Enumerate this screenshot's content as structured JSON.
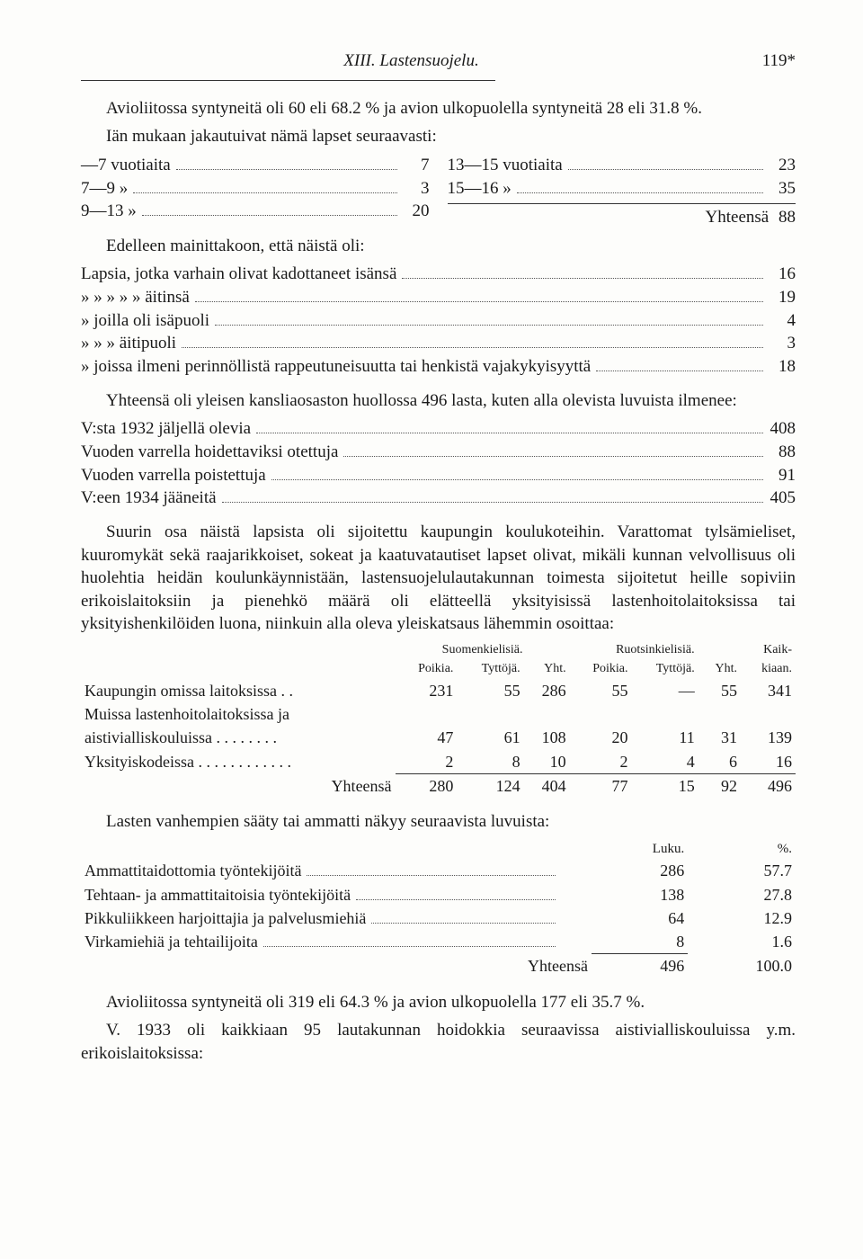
{
  "header": {
    "title": "XIII. Lastensuojelu.",
    "pageno": "119*"
  },
  "para1": "Avioliitossa syntyneitä oli 60 eli 68.2 % ja avion ulkopuolella syntyneitä 28 eli 31.8 %.",
  "para2_lead": "Iän mukaan jakautuivat nämä lapset seuraavasti:",
  "age_left": [
    {
      "lbl": "—7 vuotiaita",
      "val": "7"
    },
    {
      "lbl": "7—9      »",
      "val": "3"
    },
    {
      "lbl": "9—13    »",
      "val": "20"
    }
  ],
  "age_right": [
    {
      "lbl": "13—15 vuotiaita",
      "val": "23"
    },
    {
      "lbl": "15—16      »",
      "val": "35"
    }
  ],
  "age_total": {
    "lbl": "Yhteensä",
    "val": "88"
  },
  "para3": "Edelleen mainittakoon, että näistä oli:",
  "causes": [
    {
      "lbl": "Lapsia, jotka varhain olivat kadottaneet isänsä",
      "val": "16"
    },
    {
      "lbl": "   »        »        »         »          »      äitinsä",
      "val": "19"
    },
    {
      "lbl": "   »    joilla oli isäpuoli",
      "val": "4"
    },
    {
      "lbl": "   »       »    »  äitipuoli",
      "val": "3"
    },
    {
      "lbl": "   »    joissa ilmeni perinnöllistä rappeutuneisuutta tai henkistä vajakykyisyyttä",
      "val": "18"
    }
  ],
  "para4": "Yhteensä oli yleisen kansliaosaston huollossa 496 lasta, kuten alla olevista luvuista ilmenee:",
  "care_list": [
    {
      "lbl": "V:sta 1932 jäljellä olevia",
      "val": "408"
    },
    {
      "lbl": "Vuoden varrella hoidettaviksi otettuja",
      "val": "88"
    },
    {
      "lbl": "Vuoden varrella poistettuja",
      "val": "91"
    },
    {
      "lbl": "V:een 1934 jääneitä",
      "val": "405"
    }
  ],
  "para5": "Suurin osa näistä lapsista oli sijoitettu kaupungin koulukoteihin. Varattomat tylsämieliset, kuuromykät sekä raajarikkoiset, sokeat ja kaatuvatautiset lapset olivat, mikäli kunnan velvollisuus oli huolehtia heidän koulunkäynnistään, lastensuojelulautakunnan toimesta sijoitetut heille sopiviin erikoislaitoksiin ja pienehkö määrä oli elätteellä yksityisissä lastenhoitolaitoksissa tai yksityishenkilöiden luona, niinkuin alla oleva yleiskatsaus lähemmin osoittaa:",
  "tbl1": {
    "group_headers": [
      "",
      "Suomenkielisiä.",
      "Ruotsinkielisiä.",
      "Kaik-"
    ],
    "sub_headers": [
      "",
      "Poikia.",
      "Tyttöjä.",
      "Yht.",
      "Poikia.",
      "Tyttöjä.",
      "Yht.",
      "kiaan."
    ],
    "rows": [
      {
        "label": "Kaupungin omissa laitoksissa  . .",
        "v": [
          "231",
          "55",
          "286",
          "55",
          "—",
          "55",
          "341"
        ]
      },
      {
        "label": "Muissa lastenhoitolaitoksissa ja",
        "v": []
      },
      {
        "label": "  aistivialliskouluissa  . . . . . . . .",
        "v": [
          "47",
          "61",
          "108",
          "20",
          "11",
          "31",
          "139"
        ]
      },
      {
        "label": "Yksityiskodeissa  . . . . . . . . . . . .",
        "v": [
          "2",
          "8",
          "10",
          "2",
          "4",
          "6",
          "16"
        ]
      }
    ],
    "total": {
      "label": "Yhteensä",
      "v": [
        "280",
        "124",
        "404",
        "77",
        "15",
        "92",
        "496"
      ]
    }
  },
  "para6": "Lasten vanhempien sääty tai ammatti näkyy seuraavista luvuista:",
  "tbl2": {
    "headers": [
      "Luku.",
      "%."
    ],
    "rows": [
      {
        "label": "Ammattitaidottomia työntekijöitä",
        "v": [
          "286",
          "57.7"
        ]
      },
      {
        "label": "Tehtaan- ja ammattitaitoisia työntekijöitä",
        "v": [
          "138",
          "27.8"
        ]
      },
      {
        "label": "Pikkuliikkeen harjoittajia ja palvelusmiehiä",
        "v": [
          "64",
          "12.9"
        ]
      },
      {
        "label": "Virkamiehiä ja tehtailijoita",
        "v": [
          "8",
          "1.6"
        ]
      }
    ],
    "total": {
      "label": "Yhteensä",
      "v": [
        "496",
        "100.0"
      ]
    }
  },
  "para7": "Avioliitossa syntyneitä oli 319 eli 64.3 % ja avion ulkopuolella 177 eli 35.7 %.",
  "para8": "V. 1933 oli kaikkiaan 95 lautakunnan hoidokkia seuraavissa aistivialliskouluissa y.m. erikoislaitoksissa:"
}
